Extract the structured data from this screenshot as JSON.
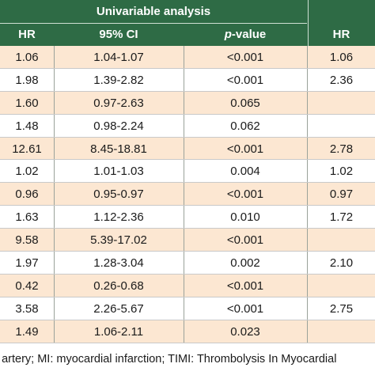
{
  "header": {
    "group_title": "Univariable analysis",
    "columns": {
      "hr": "HR",
      "ci": "95% CI",
      "p_italic": "p",
      "p_rest": "-value",
      "hr_right": "HR"
    }
  },
  "rows": [
    {
      "hr": "1.06",
      "ci": "1.04-1.07",
      "p": "<0.001",
      "hr2": "1.06"
    },
    {
      "hr": "1.98",
      "ci": "1.39-2.82",
      "p": "<0.001",
      "hr2": "2.36"
    },
    {
      "hr": "1.60",
      "ci": "0.97-2.63",
      "p": "0.065",
      "hr2": ""
    },
    {
      "hr": "1.48",
      "ci": "0.98-2.24",
      "p": "0.062",
      "hr2": ""
    },
    {
      "hr": "12.61",
      "ci": "8.45-18.81",
      "p": "<0.001",
      "hr2": "2.78"
    },
    {
      "hr": "1.02",
      "ci": "1.01-1.03",
      "p": "0.004",
      "hr2": "1.02"
    },
    {
      "hr": "0.96",
      "ci": "0.95-0.97",
      "p": "<0.001",
      "hr2": "0.97"
    },
    {
      "hr": "1.63",
      "ci": "1.12-2.36",
      "p": "0.010",
      "hr2": "1.72"
    },
    {
      "hr": "9.58",
      "ci": "5.39-17.02",
      "p": "<0.001",
      "hr2": ""
    },
    {
      "hr": "1.97",
      "ci": "1.28-3.04",
      "p": "0.002",
      "hr2": "2.10"
    },
    {
      "hr": "0.42",
      "ci": "0.26-0.68",
      "p": "<0.001",
      "hr2": ""
    },
    {
      "hr": "3.58",
      "ci": "2.26-5.67",
      "p": "<0.001",
      "hr2": "2.75"
    },
    {
      "hr": "1.49",
      "ci": "1.06-2.11",
      "p": "0.023",
      "hr2": ""
    }
  ],
  "footnote": "ry artery; MI: myocardial infarction; TIMI: Thrombolysis In Myocardial",
  "colors": {
    "header_bg": "#2e6b45",
    "shaded_row": "#fce7d2",
    "white_row": "#ffffff"
  }
}
